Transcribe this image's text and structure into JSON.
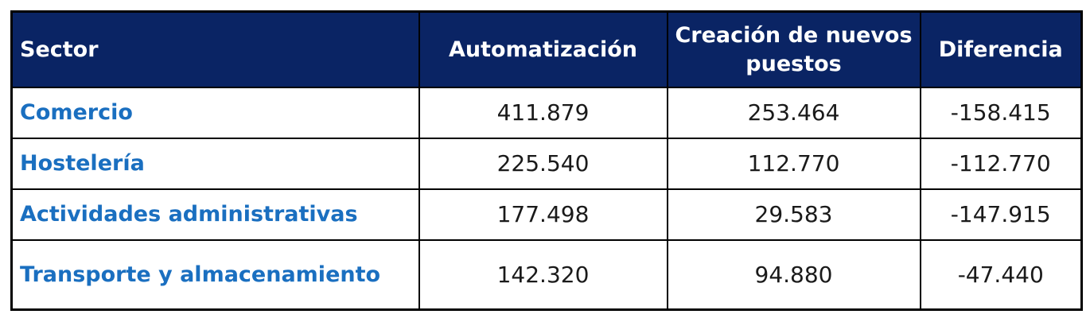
{
  "colors": {
    "header_bg": "#0a2464",
    "header_text": "#ffffff",
    "sector_text": "#1a6fc0",
    "value_text": "#1a1a1a",
    "border": "#000000"
  },
  "chart_data": {
    "type": "table",
    "columns": [
      "Sector",
      "Automatización",
      "Creación de nuevos puestos",
      "Diferencia"
    ],
    "rows": [
      [
        "Comercio",
        "411.879",
        "253.464",
        "-158.415"
      ],
      [
        "Hostelería",
        "225.540",
        "112.770",
        "-112.770"
      ],
      [
        "Actividades administrativas",
        "177.498",
        "29.583",
        "-147.915"
      ],
      [
        "Transporte y almacenamiento",
        "142.320",
        "94.880",
        "-47.440"
      ]
    ]
  }
}
